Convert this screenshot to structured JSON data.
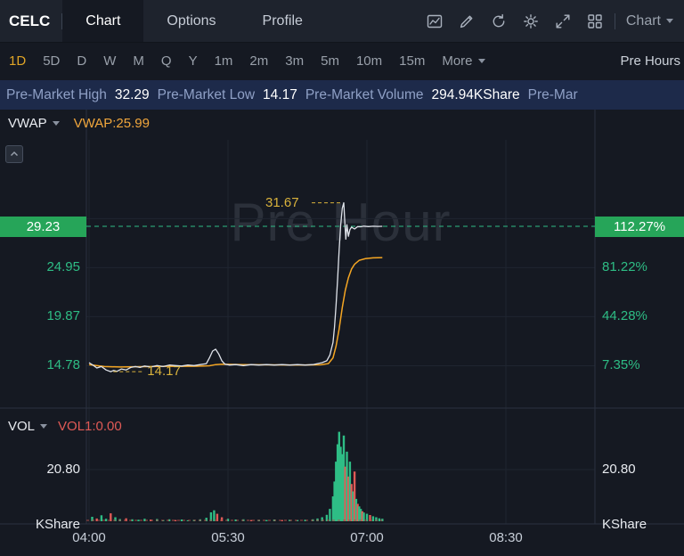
{
  "colors": {
    "background": "#151922",
    "topbar_bg": "#1e232d",
    "info_bar_bg": "#1d2a4a",
    "accent_gold": "#e0a526",
    "green": "#2ebd85",
    "red": "#e05a56",
    "orange": "#f5a623",
    "badge_green": "#26a559"
  },
  "topbar": {
    "ticker": "CELC",
    "tabs": [
      {
        "label": "Chart",
        "active": true
      },
      {
        "label": "Options",
        "active": false
      },
      {
        "label": "Profile",
        "active": false
      }
    ],
    "icons": [
      "indicator-panel",
      "draw",
      "refresh",
      "settings",
      "fullscreen",
      "layout-grid"
    ],
    "chart_dropdown": "Chart"
  },
  "timeframes": {
    "items": [
      "1D",
      "5D",
      "D",
      "W",
      "M",
      "Q",
      "Y",
      "1m",
      "2m",
      "3m",
      "5m",
      "10m",
      "15m"
    ],
    "active": "1D",
    "more_label": "More",
    "session_selector": "Pre Hours"
  },
  "premarket": {
    "items": [
      {
        "label": "Pre-Market High",
        "value": "32.29"
      },
      {
        "label": "Pre-Market Low",
        "value": "14.17"
      },
      {
        "label": "Pre-Market Volume",
        "value": "294.94KShare"
      }
    ],
    "truncated_label": "Pre-Mar"
  },
  "price_pane": {
    "indicator": "VWAP",
    "vwap_label": "VWAP:25.99",
    "watermark": "Pre Hour"
  },
  "volume_pane": {
    "indicator": "VOL",
    "vol1_label": "VOL1:0.00",
    "unit_label": "KShare"
  },
  "chart_data": {
    "type": "line",
    "x_ticks": [
      "04:00",
      "05:30",
      "07:00",
      "08:30"
    ],
    "x_tick_minutes": [
      0,
      90,
      180,
      270
    ],
    "colors": {
      "up": "#2ebd85",
      "down": "#e05a56",
      "vwap": "#f5a623",
      "price": "#dfe3ea",
      "annotation": "#d9b23c",
      "vol_ma": "#a84b47"
    },
    "price": {
      "current": 29.23,
      "change_pct": "112.27%",
      "high": {
        "t": 165,
        "value": 31.67
      },
      "low": {
        "t": 14,
        "value": 14.17
      },
      "y_ticks": [
        24.95,
        19.87,
        14.78
      ],
      "pct_ticks": [
        "81.22%",
        "44.28%",
        "7.35%"
      ],
      "points": [
        [
          0,
          15.1
        ],
        [
          3,
          14.8
        ],
        [
          5,
          14.55
        ],
        [
          8,
          14.7
        ],
        [
          11,
          14.35
        ],
        [
          14,
          14.17
        ],
        [
          16,
          14.3
        ],
        [
          18,
          14.2
        ],
        [
          21,
          14.45
        ],
        [
          24,
          14.35
        ],
        [
          27,
          14.6
        ],
        [
          30,
          14.7
        ],
        [
          33,
          14.6
        ],
        [
          36,
          14.75
        ],
        [
          40,
          14.65
        ],
        [
          44,
          14.8
        ],
        [
          48,
          14.7
        ],
        [
          52,
          14.85
        ],
        [
          56,
          14.8
        ],
        [
          60,
          14.75
        ],
        [
          64,
          14.85
        ],
        [
          68,
          14.8
        ],
        [
          72,
          14.9
        ],
        [
          76,
          15.0
        ],
        [
          78,
          15.6
        ],
        [
          80,
          16.3
        ],
        [
          82,
          16.5
        ],
        [
          84,
          16.0
        ],
        [
          86,
          15.3
        ],
        [
          88,
          14.95
        ],
        [
          91,
          14.85
        ],
        [
          95,
          14.9
        ],
        [
          100,
          14.8
        ],
        [
          105,
          14.9
        ],
        [
          110,
          14.85
        ],
        [
          115,
          14.9
        ],
        [
          120,
          14.85
        ],
        [
          125,
          14.9
        ],
        [
          130,
          14.85
        ],
        [
          135,
          14.9
        ],
        [
          140,
          14.85
        ],
        [
          145,
          14.9
        ],
        [
          148,
          15.0
        ],
        [
          151,
          15.1
        ],
        [
          154,
          15.3
        ],
        [
          156,
          15.9
        ],
        [
          158,
          17.2
        ],
        [
          159,
          18.8
        ],
        [
          160,
          21.0
        ],
        [
          161,
          23.8
        ],
        [
          162,
          26.8
        ],
        [
          163,
          29.3
        ],
        [
          164,
          31.1
        ],
        [
          165,
          31.67
        ],
        [
          165.7,
          29.6
        ],
        [
          166.3,
          27.9
        ],
        [
          167,
          29.4
        ],
        [
          168,
          28.2
        ],
        [
          169,
          28.9
        ],
        [
          170,
          29.15
        ],
        [
          172,
          28.95
        ],
        [
          174,
          29.2
        ],
        [
          176,
          29.18
        ],
        [
          178,
          29.25
        ],
        [
          181,
          29.2
        ],
        [
          184,
          29.24
        ],
        [
          187,
          29.22
        ],
        [
          190,
          29.23
        ]
      ]
    },
    "vwap": {
      "value": 25.99,
      "points": [
        [
          0,
          14.9
        ],
        [
          10,
          14.7
        ],
        [
          20,
          14.65
        ],
        [
          30,
          14.68
        ],
        [
          40,
          14.7
        ],
        [
          50,
          14.72
        ],
        [
          60,
          14.72
        ],
        [
          70,
          14.73
        ],
        [
          78,
          14.78
        ],
        [
          82,
          14.9
        ],
        [
          86,
          14.95
        ],
        [
          90,
          14.93
        ],
        [
          100,
          14.9
        ],
        [
          110,
          14.88
        ],
        [
          120,
          14.87
        ],
        [
          130,
          14.86
        ],
        [
          140,
          14.86
        ],
        [
          150,
          14.88
        ],
        [
          155,
          15.0
        ],
        [
          158,
          15.6
        ],
        [
          160,
          16.8
        ],
        [
          162,
          18.6
        ],
        [
          164,
          20.8
        ],
        [
          166,
          22.6
        ],
        [
          168,
          23.9
        ],
        [
          170,
          24.8
        ],
        [
          172,
          25.3
        ],
        [
          175,
          25.7
        ],
        [
          179,
          25.88
        ],
        [
          184,
          25.96
        ],
        [
          190,
          25.99
        ]
      ]
    },
    "volume": {
      "y_tick": 20.8,
      "y_tick_label": "20.80",
      "unit": "KShare",
      "total": "294.94K",
      "ma1": 0.0,
      "bars": [
        [
          2,
          1.8,
          1
        ],
        [
          5,
          1.1,
          0
        ],
        [
          8,
          2.4,
          1
        ],
        [
          11,
          1,
          1
        ],
        [
          14,
          3.2,
          0
        ],
        [
          17,
          1.6,
          1
        ],
        [
          20,
          0.9,
          1
        ],
        [
          24,
          1.2,
          0
        ],
        [
          28,
          0.8,
          1
        ],
        [
          32,
          0.6,
          1
        ],
        [
          36,
          1,
          1
        ],
        [
          40,
          0.7,
          0
        ],
        [
          44,
          0.9,
          1
        ],
        [
          48,
          0.5,
          1
        ],
        [
          52,
          0.8,
          1
        ],
        [
          56,
          0.5,
          0
        ],
        [
          60,
          0.7,
          1
        ],
        [
          64,
          0.4,
          1
        ],
        [
          68,
          0.6,
          1
        ],
        [
          72,
          0.8,
          1
        ],
        [
          76,
          1.4,
          1
        ],
        [
          79,
          3.6,
          1
        ],
        [
          81,
          4.4,
          1
        ],
        [
          83,
          3,
          0
        ],
        [
          86,
          1.6,
          0
        ],
        [
          90,
          1,
          1
        ],
        [
          95,
          0.7,
          1
        ],
        [
          100,
          0.8,
          1
        ],
        [
          105,
          0.5,
          0
        ],
        [
          110,
          0.6,
          1
        ],
        [
          115,
          0.5,
          1
        ],
        [
          120,
          0.7,
          1
        ],
        [
          125,
          0.5,
          0
        ],
        [
          130,
          0.6,
          1
        ],
        [
          135,
          0.5,
          1
        ],
        [
          140,
          0.6,
          1
        ],
        [
          145,
          0.8,
          1
        ],
        [
          148,
          1.1,
          1
        ],
        [
          151,
          1.6,
          1
        ],
        [
          154,
          2.6,
          1
        ],
        [
          156,
          5,
          1
        ],
        [
          158,
          10,
          1
        ],
        [
          159,
          16,
          1
        ],
        [
          160,
          24,
          1
        ],
        [
          161,
          31,
          1
        ],
        [
          162,
          36,
          1
        ],
        [
          163,
          30,
          1
        ],
        [
          164,
          27,
          1
        ],
        [
          165,
          34.5,
          1
        ],
        [
          166,
          22,
          0
        ],
        [
          167,
          28,
          1
        ],
        [
          168,
          18,
          0
        ],
        [
          169,
          24,
          1
        ],
        [
          170,
          15,
          0
        ],
        [
          171,
          12,
          1
        ],
        [
          172,
          20,
          0
        ],
        [
          173,
          9,
          1
        ],
        [
          174,
          7,
          0
        ],
        [
          175,
          6,
          1
        ],
        [
          176,
          5,
          1
        ],
        [
          177,
          4,
          0
        ],
        [
          178,
          3.5,
          1
        ],
        [
          180,
          3,
          1
        ],
        [
          182,
          2.5,
          0
        ],
        [
          184,
          2,
          1
        ],
        [
          186,
          1.6,
          1
        ],
        [
          188,
          1.2,
          1
        ],
        [
          190,
          1,
          1
        ]
      ]
    }
  }
}
